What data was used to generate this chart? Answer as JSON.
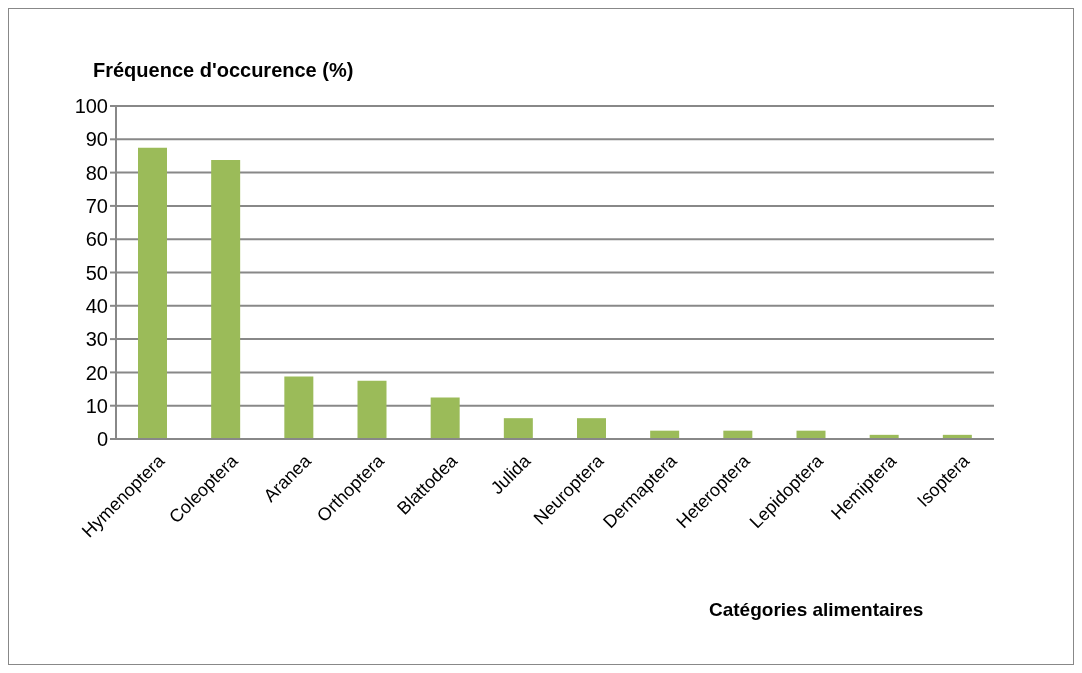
{
  "chart_data": {
    "type": "bar",
    "ylabel": "Fréquence d'occurence (%)",
    "xlabel": "Catégories alimentaires",
    "categories": [
      "Hymenoptera",
      "Coleoptera",
      "Aranea",
      "Orthoptera",
      "Blattodea",
      "Julida",
      "Neuroptera",
      "Dermaptera",
      "Heteroptera",
      "Lepidoptera",
      "Hemiptera",
      "Isoptera"
    ],
    "values": [
      87.5,
      83.75,
      18.75,
      17.5,
      12.5,
      6.25,
      6.25,
      2.5,
      2.5,
      2.5,
      1.25,
      1.25
    ],
    "color": "#9bbb59",
    "ylim": [
      0,
      100
    ],
    "yticks": [
      0,
      10,
      20,
      30,
      40,
      50,
      60,
      70,
      80,
      90,
      100
    ],
    "grid": "y"
  }
}
